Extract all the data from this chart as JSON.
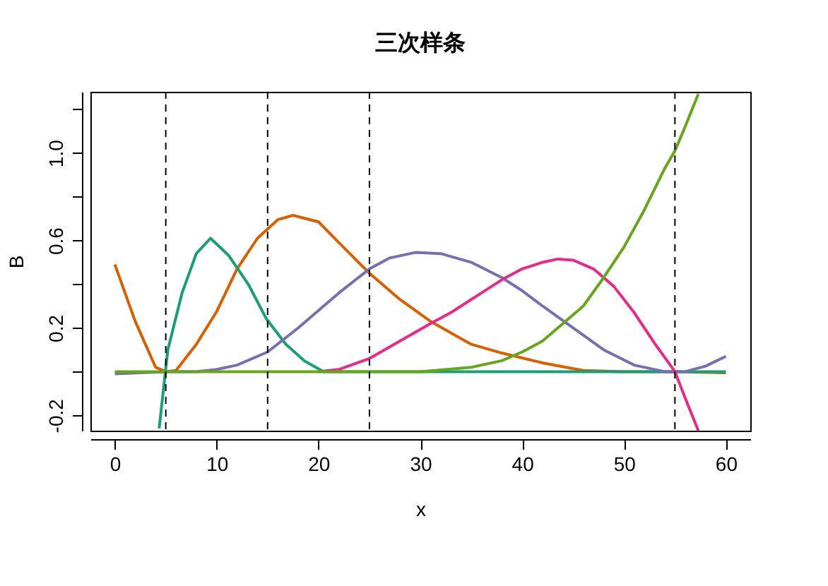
{
  "chart_data": {
    "type": "line",
    "title": "三次样条",
    "xlabel": "x",
    "ylabel": "B",
    "xlim": [
      -2.4,
      62.4
    ],
    "ylim": [
      -0.27,
      1.28
    ],
    "xticks": [
      0,
      10,
      20,
      30,
      40,
      50,
      60
    ],
    "yticks": [
      -0.2,
      {
        "value": 0,
        "label": null
      },
      0.2,
      {
        "value": 0.4,
        "label": null
      },
      0.6,
      {
        "value": 0.8,
        "label": null
      },
      {
        "value": 1,
        "label": "1.0"
      },
      {
        "value": 1.2,
        "label": null
      }
    ],
    "grid": false,
    "line_style": "solid",
    "marker": "none",
    "ref_lines": [
      {
        "axis": "x",
        "value": 5,
        "line_style": "dashed",
        "color": "#000000"
      },
      {
        "axis": "x",
        "value": 15,
        "line_style": "dashed",
        "color": "#000000"
      },
      {
        "axis": "x",
        "value": 25,
        "line_style": "dashed",
        "color": "#000000"
      },
      {
        "axis": "x",
        "value": 55,
        "line_style": "dashed",
        "color": "#000000"
      }
    ],
    "series": [
      {
        "color": "#d95f02",
        "x": [
          0,
          1,
          2,
          3,
          4,
          5,
          6,
          8,
          10,
          12,
          14,
          16,
          17.5,
          20,
          22,
          25,
          28,
          31,
          35,
          38,
          42,
          46,
          50,
          55,
          60
        ],
        "values": [
          0.49,
          0.36,
          0.23,
          0.125,
          0.02,
          0,
          0.005,
          0.125,
          0.275,
          0.47,
          0.61,
          0.695,
          0.715,
          0.685,
          0.59,
          0.45,
          0.33,
          0.23,
          0.125,
          0.085,
          0.04,
          0.005,
          0,
          0,
          -0.005
        ]
      },
      {
        "color": "#1b9e77",
        "x": [
          4.35,
          5.2,
          6.6,
          8,
          9.4,
          11.2,
          13.1,
          14.9,
          16.8,
          18.6,
          20.5,
          25,
          30,
          40,
          50,
          60
        ],
        "values": [
          -0.26,
          0.1,
          0.36,
          0.54,
          0.61,
          0.53,
          0.4,
          0.24,
          0.125,
          0.05,
          0,
          0,
          0,
          0,
          0,
          0
        ]
      },
      {
        "color": "#7570b3",
        "x": [
          0,
          5,
          8,
          10,
          12,
          15,
          18,
          20,
          22,
          25,
          27,
          29.5,
          32,
          35,
          38,
          40,
          42,
          45,
          48,
          51,
          54,
          56,
          58,
          60
        ],
        "values": [
          -0.01,
          0,
          0,
          0.01,
          0.03,
          0.09,
          0.2,
          0.28,
          0.36,
          0.47,
          0.52,
          0.545,
          0.54,
          0.5,
          0.43,
          0.37,
          0.3,
          0.2,
          0.1,
          0.03,
          0,
          0,
          0.025,
          0.07
        ]
      },
      {
        "color": "#e7298a",
        "x": [
          20,
          22,
          25,
          28,
          31,
          33,
          36,
          38,
          40,
          42,
          43.5,
          45,
          47,
          49,
          51,
          53,
          55,
          56,
          57.3
        ],
        "values": [
          0,
          0.01,
          0.06,
          0.14,
          0.22,
          0.27,
          0.36,
          0.42,
          0.47,
          0.5,
          0.515,
          0.51,
          0.47,
          0.39,
          0.27,
          0.13,
          0,
          -0.12,
          -0.27
        ]
      },
      {
        "color": "#66a61e",
        "x": [
          0,
          10,
          20,
          30,
          35,
          38,
          40,
          42,
          44,
          46,
          48,
          50,
          52,
          54,
          55,
          56,
          57.3
        ],
        "values": [
          0,
          0,
          0,
          0,
          0.02,
          0.05,
          0.09,
          0.14,
          0.22,
          0.3,
          0.43,
          0.57,
          0.74,
          0.93,
          1.01,
          1.12,
          1.27
        ]
      }
    ]
  }
}
